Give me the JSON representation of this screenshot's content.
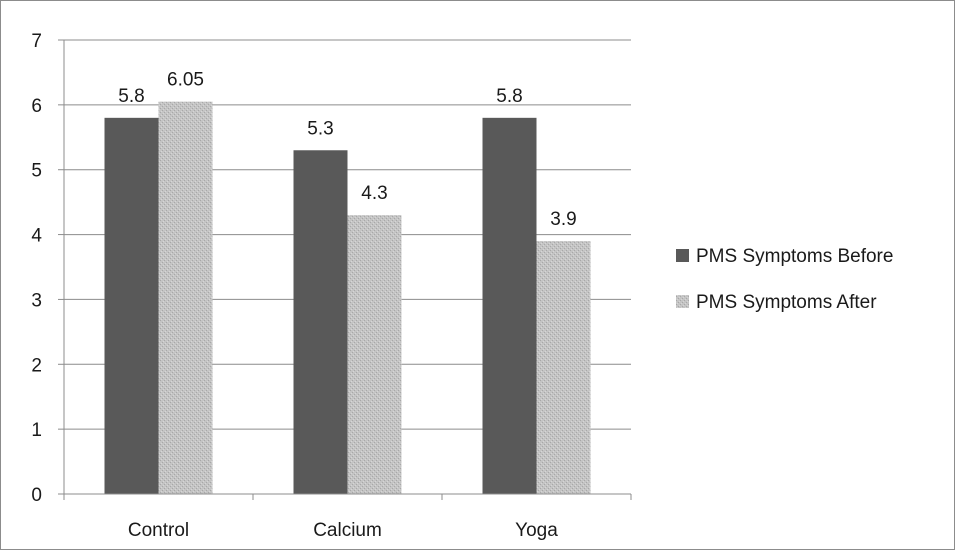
{
  "chart_data": {
    "type": "bar",
    "categories": [
      "Control",
      "Calcium",
      "Yoga"
    ],
    "series": [
      {
        "name": "PMS Symptoms Before",
        "values": [
          5.8,
          5.3,
          5.8
        ],
        "labels": [
          "5.8",
          "5.3",
          "5.8"
        ],
        "color": "#595959"
      },
      {
        "name": "PMS Symptoms After",
        "values": [
          6.05,
          4.3,
          3.9
        ],
        "labels": [
          "6.05",
          "4.3",
          "3.9"
        ],
        "color": "#bfbfbf"
      }
    ],
    "ylim": [
      0,
      7
    ],
    "yticks": [
      "0",
      "1",
      "2",
      "3",
      "4",
      "5",
      "6",
      "7"
    ],
    "grid": true,
    "legend": "right"
  }
}
